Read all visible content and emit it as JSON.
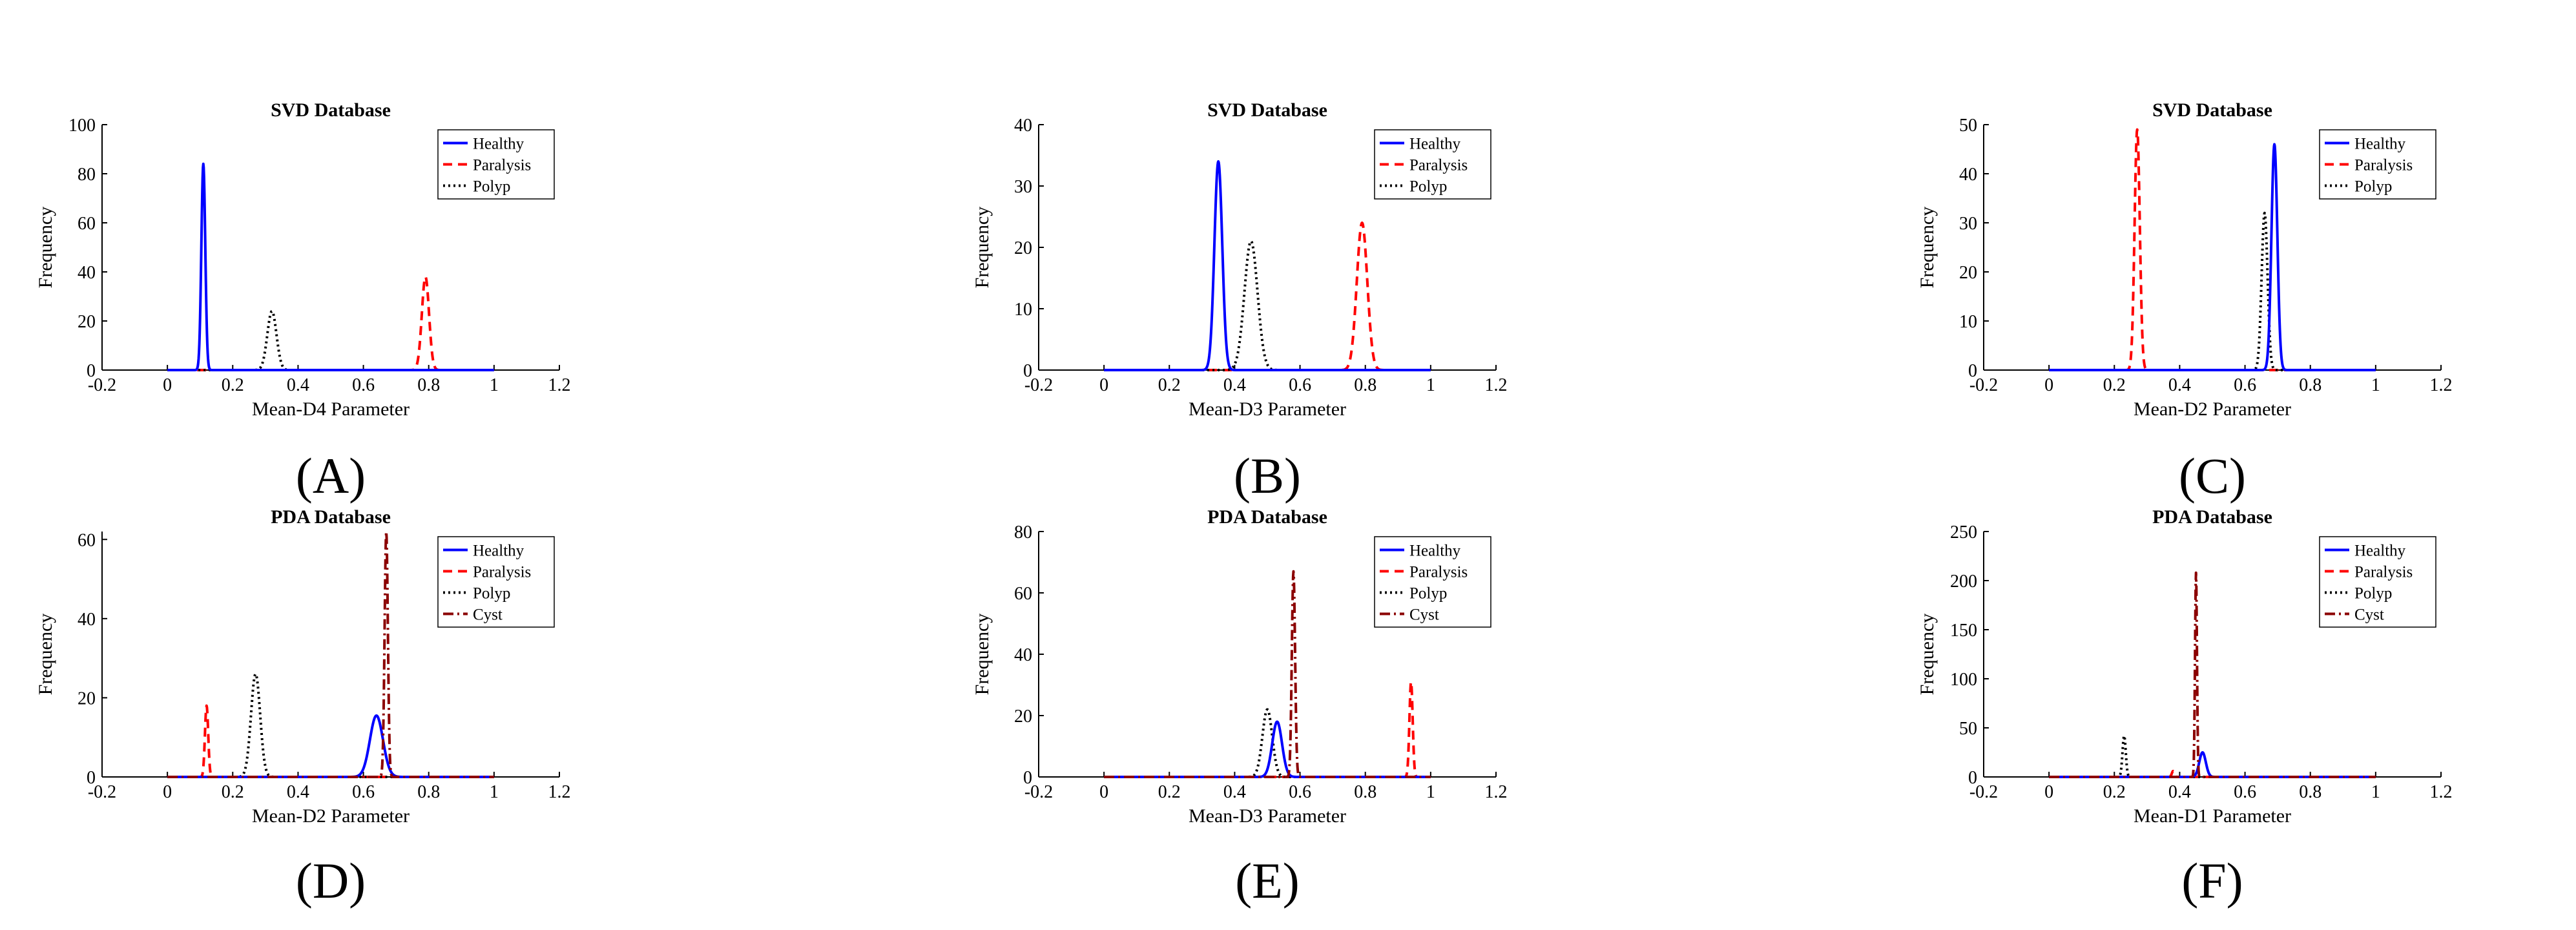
{
  "figure": {
    "style": {
      "colors": {
        "Healthy": "#0000ff",
        "Paralysis": "#ff0000",
        "Polyp": "#000000",
        "Cyst": "#8b0000"
      },
      "dash": {
        "Healthy": "solid",
        "Paralysis": "dashed",
        "Polyp": "dotted",
        "Cyst": "dashdot"
      }
    }
  },
  "chart_data": [
    {
      "panel": "(A)",
      "type": "line",
      "title": "SVD Database",
      "xlabel": "Mean-D4 Parameter",
      "ylabel": "Frequency",
      "xlim": [
        -0.2,
        1.2
      ],
      "ylim": [
        0,
        100
      ],
      "xticks": [
        -0.2,
        0,
        0.2,
        0.4,
        0.6,
        0.8,
        1,
        1.2
      ],
      "xtick_labels": [
        "-0.2",
        "0",
        "0.2",
        "0.4",
        "0.6",
        "0.8",
        "1",
        "1.2"
      ],
      "yticks": [
        0,
        20,
        40,
        60,
        80,
        100
      ],
      "ytick_labels": [
        "0",
        "20",
        "40",
        "60",
        "80",
        "100"
      ],
      "legend": [
        "Healthy",
        "Paralysis",
        "Polyp"
      ],
      "series": [
        {
          "name": "Healthy",
          "peak_x": 0.11,
          "peak_y": 84,
          "width": 0.006
        },
        {
          "name": "Paralysis",
          "peak_x": 0.79,
          "peak_y": 38,
          "width": 0.011
        },
        {
          "name": "Polyp",
          "peak_x": 0.32,
          "peak_y": 24,
          "width": 0.014
        }
      ]
    },
    {
      "panel": "(B)",
      "type": "line",
      "title": "SVD Database",
      "xlabel": "Mean-D3 Parameter",
      "ylabel": "Frequency",
      "xlim": [
        -0.2,
        1.2
      ],
      "ylim": [
        0,
        40
      ],
      "xticks": [
        -0.2,
        0,
        0.2,
        0.4,
        0.6,
        0.8,
        1,
        1.2
      ],
      "xtick_labels": [
        "-0.2",
        "0",
        "0.2",
        "0.4",
        "0.6",
        "0.8",
        "1",
        "1.2"
      ],
      "yticks": [
        0,
        10,
        20,
        30,
        40
      ],
      "ytick_labels": [
        "0",
        "10",
        "20",
        "30",
        "40"
      ],
      "legend": [
        "Healthy",
        "Paralysis",
        "Polyp"
      ],
      "series": [
        {
          "name": "Healthy",
          "peak_x": 0.35,
          "peak_y": 34,
          "width": 0.012
        },
        {
          "name": "Paralysis",
          "peak_x": 0.79,
          "peak_y": 24,
          "width": 0.016
        },
        {
          "name": "Polyp",
          "peak_x": 0.45,
          "peak_y": 21,
          "width": 0.02
        }
      ]
    },
    {
      "panel": "(C)",
      "type": "line",
      "title": "SVD Database",
      "xlabel": "Mean-D2 Parameter",
      "ylabel": "Frequency",
      "xlim": [
        -0.2,
        1.2
      ],
      "ylim": [
        0,
        50
      ],
      "xticks": [
        -0.2,
        0,
        0.2,
        0.4,
        0.6,
        0.8,
        1,
        1.2
      ],
      "xtick_labels": [
        "-0.2",
        "0",
        "0.2",
        "0.4",
        "0.6",
        "0.8",
        "1",
        "1.2"
      ],
      "yticks": [
        0,
        10,
        20,
        30,
        40,
        50
      ],
      "ytick_labels": [
        "0",
        "10",
        "20",
        "30",
        "40",
        "50"
      ],
      "legend": [
        "Healthy",
        "Paralysis",
        "Polyp"
      ],
      "series": [
        {
          "name": "Healthy",
          "peak_x": 0.69,
          "peak_y": 46,
          "width": 0.009
        },
        {
          "name": "Paralysis",
          "peak_x": 0.27,
          "peak_y": 49,
          "width": 0.008
        },
        {
          "name": "Polyp",
          "peak_x": 0.66,
          "peak_y": 32,
          "width": 0.009
        }
      ]
    },
    {
      "panel": "(D)",
      "type": "line",
      "title": "PDA Database",
      "xlabel": "Mean-D2 Parameter",
      "ylabel": "Frequency",
      "xlim": [
        -0.2,
        1.2
      ],
      "ylim": [
        0,
        62
      ],
      "xticks": [
        -0.2,
        0,
        0.2,
        0.4,
        0.6,
        0.8,
        1,
        1.2
      ],
      "xtick_labels": [
        "-0.2",
        "0",
        "0.2",
        "0.4",
        "0.6",
        "0.8",
        "1",
        "1.2"
      ],
      "yticks": [
        0,
        20,
        40,
        60
      ],
      "ytick_labels": [
        "0",
        "20",
        "40",
        "60"
      ],
      "legend": [
        "Healthy",
        "Paralysis",
        "Polyp",
        "Cyst"
      ],
      "series": [
        {
          "name": "Healthy",
          "peak_x": 0.64,
          "peak_y": 15.5,
          "width": 0.02
        },
        {
          "name": "Paralysis",
          "peak_x": 0.12,
          "peak_y": 18,
          "width": 0.005
        },
        {
          "name": "Polyp",
          "peak_x": 0.27,
          "peak_y": 26,
          "width": 0.014
        },
        {
          "name": "Cyst",
          "peak_x": 0.67,
          "peak_y": 62,
          "width": 0.005
        }
      ]
    },
    {
      "panel": "(E)",
      "type": "line",
      "title": "PDA Database",
      "xlabel": "Mean-D3 Parameter",
      "ylabel": "Frequency",
      "xlim": [
        -0.2,
        1.2
      ],
      "ylim": [
        0,
        80
      ],
      "xticks": [
        -0.2,
        0,
        0.2,
        0.4,
        0.6,
        0.8,
        1,
        1.2
      ],
      "xtick_labels": [
        "-0.2",
        "0",
        "0.2",
        "0.4",
        "0.6",
        "0.8",
        "1",
        "1.2"
      ],
      "yticks": [
        0,
        20,
        40,
        60,
        80
      ],
      "ytick_labels": [
        "0",
        "20",
        "40",
        "60",
        "80"
      ],
      "legend": [
        "Healthy",
        "Paralysis",
        "Polyp",
        "Cyst"
      ],
      "series": [
        {
          "name": "Healthy",
          "peak_x": 0.53,
          "peak_y": 18,
          "width": 0.015
        },
        {
          "name": "Paralysis",
          "peak_x": 0.94,
          "peak_y": 31,
          "width": 0.005
        },
        {
          "name": "Polyp",
          "peak_x": 0.5,
          "peak_y": 22,
          "width": 0.015
        },
        {
          "name": "Cyst",
          "peak_x": 0.58,
          "peak_y": 67,
          "width": 0.005
        }
      ]
    },
    {
      "panel": "(F)",
      "type": "line",
      "title": "PDA Database",
      "xlabel": "Mean-D1 Parameter",
      "ylabel": "Frequency",
      "xlim": [
        -0.2,
        1.2
      ],
      "ylim": [
        0,
        250
      ],
      "xticks": [
        -0.2,
        0,
        0.2,
        0.4,
        0.6,
        0.8,
        1,
        1.2
      ],
      "xtick_labels": [
        "-0.2",
        "0",
        "0.2",
        "0.4",
        "0.6",
        "0.8",
        "1",
        "1.2"
      ],
      "yticks": [
        0,
        50,
        100,
        150,
        200,
        250
      ],
      "ytick_labels": [
        "0",
        "50",
        "100",
        "150",
        "200",
        "250"
      ],
      "legend": [
        "Healthy",
        "Paralysis",
        "Polyp",
        "Cyst"
      ],
      "series": [
        {
          "name": "Healthy",
          "peak_x": 0.47,
          "peak_y": 25,
          "width": 0.01
        },
        {
          "name": "Paralysis",
          "peak_x": 0.38,
          "peak_y": 6,
          "width": 0.004
        },
        {
          "name": "Polyp",
          "peak_x": 0.23,
          "peak_y": 42,
          "width": 0.005
        },
        {
          "name": "Cyst",
          "peak_x": 0.45,
          "peak_y": 208,
          "width": 0.003
        }
      ]
    }
  ]
}
